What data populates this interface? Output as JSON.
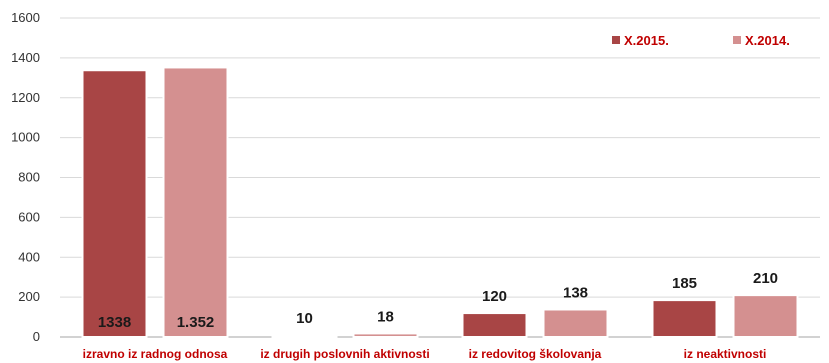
{
  "chart_data": {
    "type": "bar",
    "categories": [
      "izravno iz radnog odnosa",
      "iz drugih poslovnih aktivnosti",
      "iz redovitog školovanja",
      "iz neaktivnosti"
    ],
    "series": [
      {
        "name": "X.2015.",
        "values": [
          1338,
          10,
          120,
          185
        ],
        "labels": [
          "1338",
          "10",
          "120",
          "185"
        ],
        "color": "#A84545"
      },
      {
        "name": "X.2014.",
        "values": [
          1352,
          18,
          138,
          210
        ],
        "labels": [
          "1.352",
          "18",
          "138",
          "210"
        ],
        "color": "#D49090"
      }
    ],
    "title": "",
    "xlabel": "",
    "ylabel": "",
    "ylim": [
      0,
      1600
    ],
    "yticks": [
      0,
      200,
      400,
      600,
      800,
      1000,
      1200,
      1400,
      1600
    ],
    "grid": true,
    "legend_position": "top-right"
  }
}
